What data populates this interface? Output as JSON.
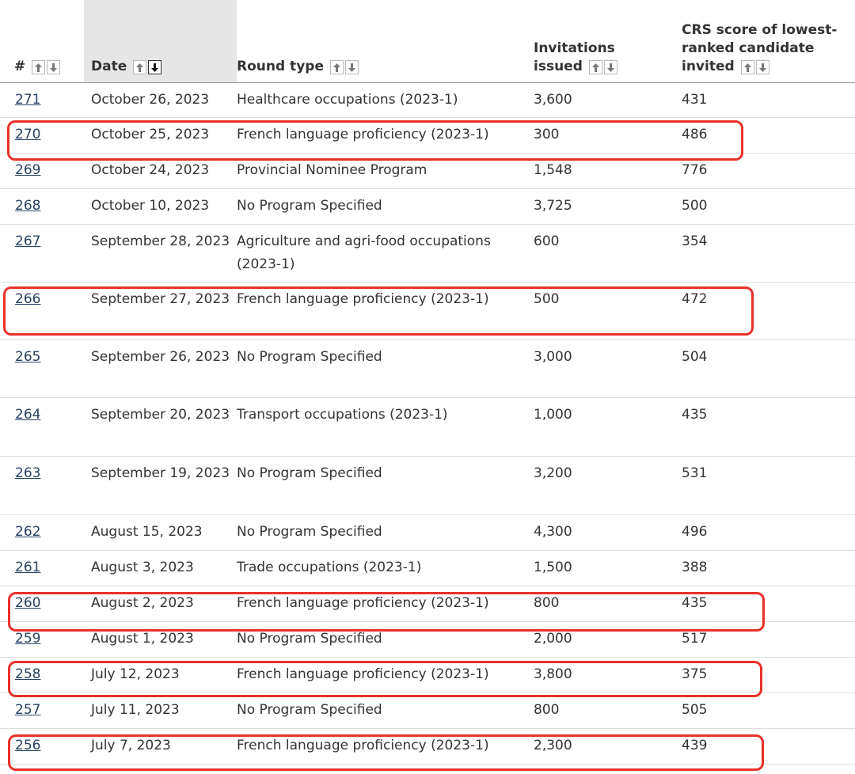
{
  "header": {
    "num": "#",
    "date": "Date",
    "round_type": "Round type",
    "invitations_line1": "Invitations",
    "invitations_line2": "issued",
    "crs_line1": "CRS score of lowest-",
    "crs_line2": "ranked candidate",
    "crs_line3": "invited"
  },
  "rows": [
    {
      "num": "271",
      "date": "October 26, 2023",
      "type": "Healthcare occupations (2023-1)",
      "invitations": "3,600",
      "crs": "431"
    },
    {
      "num": "270",
      "date": "October 25, 2023",
      "type": "French language proficiency (2023-1)",
      "invitations": "300",
      "crs": "486"
    },
    {
      "num": "269",
      "date": "October 24, 2023",
      "type": "Provincial Nominee Program",
      "invitations": "1,548",
      "crs": "776"
    },
    {
      "num": "268",
      "date": "October 10, 2023",
      "type": "No Program Specified",
      "invitations": "3,725",
      "crs": "500"
    },
    {
      "num": "267",
      "date": "September 28, 2023",
      "type": "Agriculture and agri-food occupations (2023-1)",
      "invitations": "600",
      "crs": "354"
    },
    {
      "num": "266",
      "date": "September 27, 2023",
      "type": "French language proficiency (2023-1)",
      "invitations": "500",
      "crs": "472"
    },
    {
      "num": "265",
      "date": "September 26, 2023",
      "type": "No Program Specified",
      "invitations": "3,000",
      "crs": "504"
    },
    {
      "num": "264",
      "date": "September 20, 2023",
      "type": "Transport occupations (2023-1)",
      "invitations": "1,000",
      "crs": "435"
    },
    {
      "num": "263",
      "date": "September 19, 2023",
      "type": "No Program Specified",
      "invitations": "3,200",
      "crs": "531"
    },
    {
      "num": "262",
      "date": "August 15, 2023",
      "type": "No Program Specified",
      "invitations": "4,300",
      "crs": "496"
    },
    {
      "num": "261",
      "date": "August 3, 2023",
      "type": "Trade occupations (2023-1)",
      "invitations": "1,500",
      "crs": "388"
    },
    {
      "num": "260",
      "date": "August 2, 2023",
      "type": "French language proficiency (2023-1)",
      "invitations": "800",
      "crs": "435"
    },
    {
      "num": "259",
      "date": "August 1, 2023",
      "type": "No Program Specified",
      "invitations": "2,000",
      "crs": "517"
    },
    {
      "num": "258",
      "date": "July 12, 2023",
      "type": "French language proficiency (2023-1)",
      "invitations": "3,800",
      "crs": "375"
    },
    {
      "num": "257",
      "date": "July 11, 2023",
      "type": "No Program Specified",
      "invitations": "800",
      "crs": "505"
    },
    {
      "num": "256",
      "date": "July 7, 2023",
      "type": "French language proficiency (2023-1)",
      "invitations": "2,300",
      "crs": "439"
    }
  ],
  "sort": {
    "column": "date",
    "direction": "descending"
  },
  "colors": {
    "link": "#284162",
    "highlight": "#e8312a",
    "active_header_bg": "#e6e6e6"
  }
}
